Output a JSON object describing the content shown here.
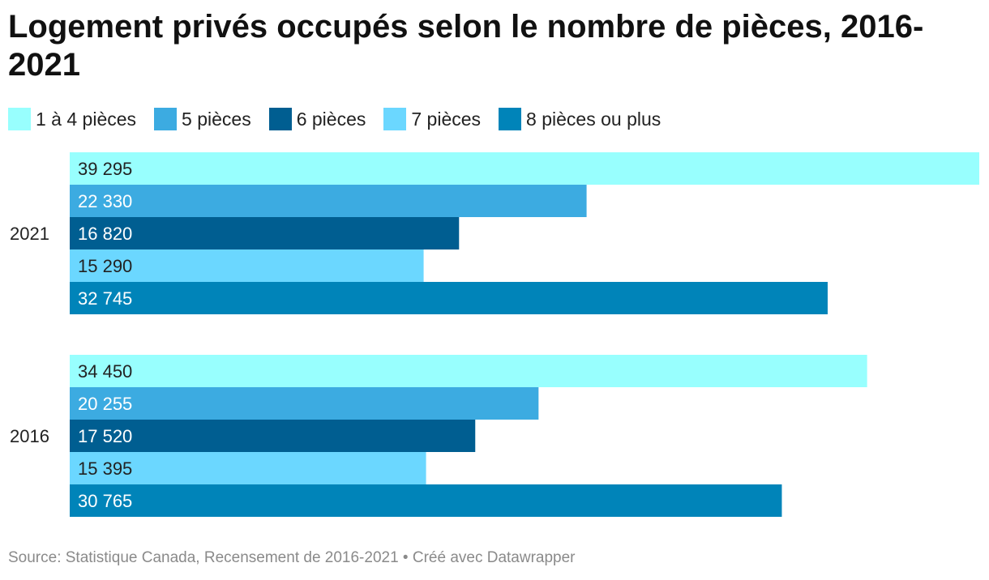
{
  "chart_data": {
    "type": "bar",
    "orientation": "horizontal",
    "title": "Logement privés occupés selon le nombre de pièces, 2016-2021",
    "categories": [
      "2021",
      "2016"
    ],
    "series": [
      {
        "name": "1 à 4 pièces",
        "color": "#98fffe",
        "values": [
          39295,
          34450
        ],
        "labels": [
          "39 295",
          "34 450"
        ]
      },
      {
        "name": "5 pièces",
        "color": "#3cabe1",
        "values": [
          22330,
          20255
        ],
        "labels": [
          "22 330",
          "20 255"
        ]
      },
      {
        "name": "6 pièces",
        "color": "#005e91",
        "values": [
          16820,
          17520
        ],
        "labels": [
          "16 820",
          "17 520"
        ]
      },
      {
        "name": "7 pièces",
        "color": "#6bd7ff",
        "values": [
          15290,
          15395
        ],
        "labels": [
          "15 290",
          "15 395"
        ]
      },
      {
        "name": "8 pièces ou plus",
        "color": "#0084b9",
        "values": [
          32745,
          30765
        ],
        "labels": [
          "32 745",
          "30 765"
        ]
      }
    ],
    "xlim": [
      0,
      39295
    ],
    "grid": false,
    "legend_position": "top-left"
  },
  "source": "Source: Statistique Canada, Recensement de 2016-2021 • Créé avec Datawrapper"
}
